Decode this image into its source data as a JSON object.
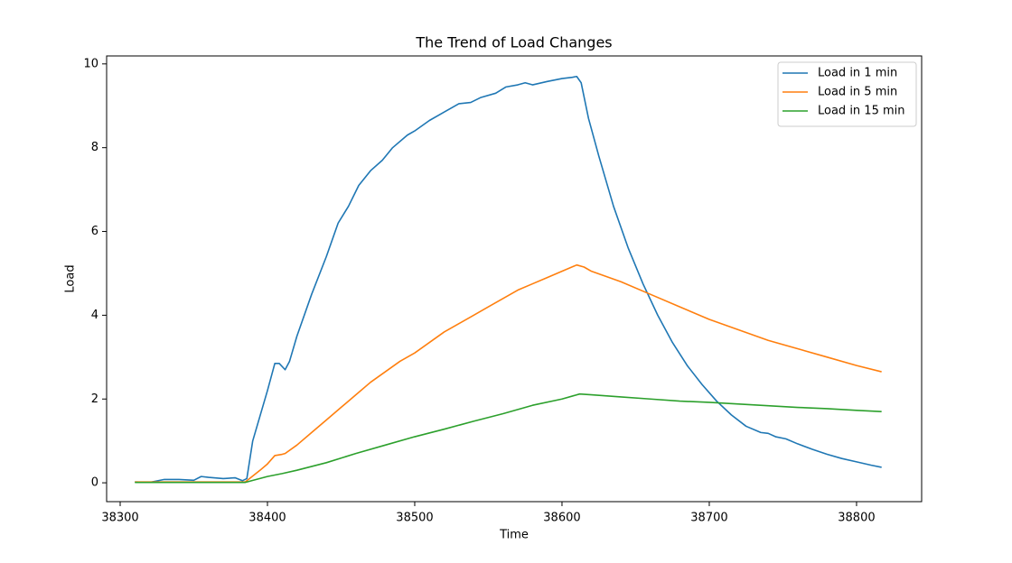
{
  "chart_data": {
    "type": "line",
    "title": "The Trend of Load Changes",
    "x_label": "Time",
    "y_label": "Load",
    "xlim": [
      38290.8,
      38844.2
    ],
    "ylim": [
      -0.45,
      10.19
    ],
    "xticks": [
      38300,
      38400,
      38500,
      38600,
      38700,
      38800
    ],
    "yticks": [
      0,
      2,
      4,
      6,
      8,
      10
    ],
    "legend": "upper right",
    "series": [
      {
        "name": "Load in 1 min",
        "color": "#1f77b4",
        "x": [
          38310,
          38320,
          38330,
          38340,
          38350,
          38355,
          38360,
          38370,
          38378,
          38383,
          38386,
          38390,
          38395,
          38400,
          38405,
          38408,
          38412,
          38415,
          38420,
          38430,
          38440,
          38448,
          38455,
          38462,
          38470,
          38478,
          38485,
          38495,
          38500,
          38510,
          38520,
          38530,
          38538,
          38545,
          38555,
          38562,
          38570,
          38575,
          38580,
          38590,
          38600,
          38607,
          38610,
          38613,
          38618,
          38625,
          38635,
          38645,
          38655,
          38665,
          38675,
          38685,
          38695,
          38705,
          38715,
          38725,
          38735,
          38740,
          38745,
          38752,
          38760,
          38770,
          38780,
          38790,
          38800,
          38810,
          38817
        ],
        "values": [
          0.02,
          0.01,
          0.08,
          0.08,
          0.06,
          0.15,
          0.13,
          0.1,
          0.12,
          0.05,
          0.1,
          1.0,
          1.6,
          2.2,
          2.85,
          2.85,
          2.7,
          2.9,
          3.5,
          4.5,
          5.4,
          6.2,
          6.6,
          7.1,
          7.45,
          7.7,
          8.0,
          8.3,
          8.4,
          8.65,
          8.85,
          9.05,
          9.08,
          9.2,
          9.3,
          9.45,
          9.5,
          9.55,
          9.5,
          9.58,
          9.65,
          9.68,
          9.7,
          9.55,
          8.7,
          7.8,
          6.6,
          5.6,
          4.75,
          4.0,
          3.35,
          2.8,
          2.35,
          1.95,
          1.62,
          1.35,
          1.2,
          1.18,
          1.1,
          1.05,
          0.93,
          0.8,
          0.68,
          0.58,
          0.5,
          0.42,
          0.37
        ]
      },
      {
        "name": "Load in 5 min",
        "color": "#ff7f0e",
        "x": [
          38310,
          38340,
          38385,
          38395,
          38400,
          38405,
          38410,
          38412,
          38420,
          38430,
          38440,
          38450,
          38460,
          38470,
          38480,
          38490,
          38500,
          38510,
          38520,
          38530,
          38540,
          38550,
          38560,
          38570,
          38580,
          38590,
          38600,
          38610,
          38615,
          38620,
          38640,
          38660,
          38680,
          38700,
          38720,
          38740,
          38760,
          38780,
          38800,
          38817
        ],
        "values": [
          0.02,
          0.02,
          0.02,
          0.3,
          0.45,
          0.65,
          0.68,
          0.7,
          0.9,
          1.2,
          1.5,
          1.8,
          2.1,
          2.4,
          2.65,
          2.9,
          3.1,
          3.35,
          3.6,
          3.8,
          4.0,
          4.2,
          4.4,
          4.6,
          4.75,
          4.9,
          5.05,
          5.2,
          5.15,
          5.05,
          4.8,
          4.5,
          4.2,
          3.9,
          3.65,
          3.4,
          3.2,
          3.0,
          2.8,
          2.65
        ]
      },
      {
        "name": "Load in 15 min",
        "color": "#2ca02c",
        "x": [
          38310,
          38385,
          38400,
          38410,
          38420,
          38440,
          38460,
          38480,
          38500,
          38520,
          38540,
          38560,
          38580,
          38600,
          38612,
          38620,
          38640,
          38660,
          38680,
          38700,
          38720,
          38740,
          38760,
          38780,
          38800,
          38817
        ],
        "values": [
          0.01,
          0.01,
          0.15,
          0.22,
          0.3,
          0.48,
          0.7,
          0.9,
          1.1,
          1.28,
          1.47,
          1.65,
          1.85,
          2.0,
          2.12,
          2.1,
          2.05,
          2.0,
          1.95,
          1.92,
          1.88,
          1.84,
          1.8,
          1.77,
          1.73,
          1.7
        ]
      }
    ]
  }
}
